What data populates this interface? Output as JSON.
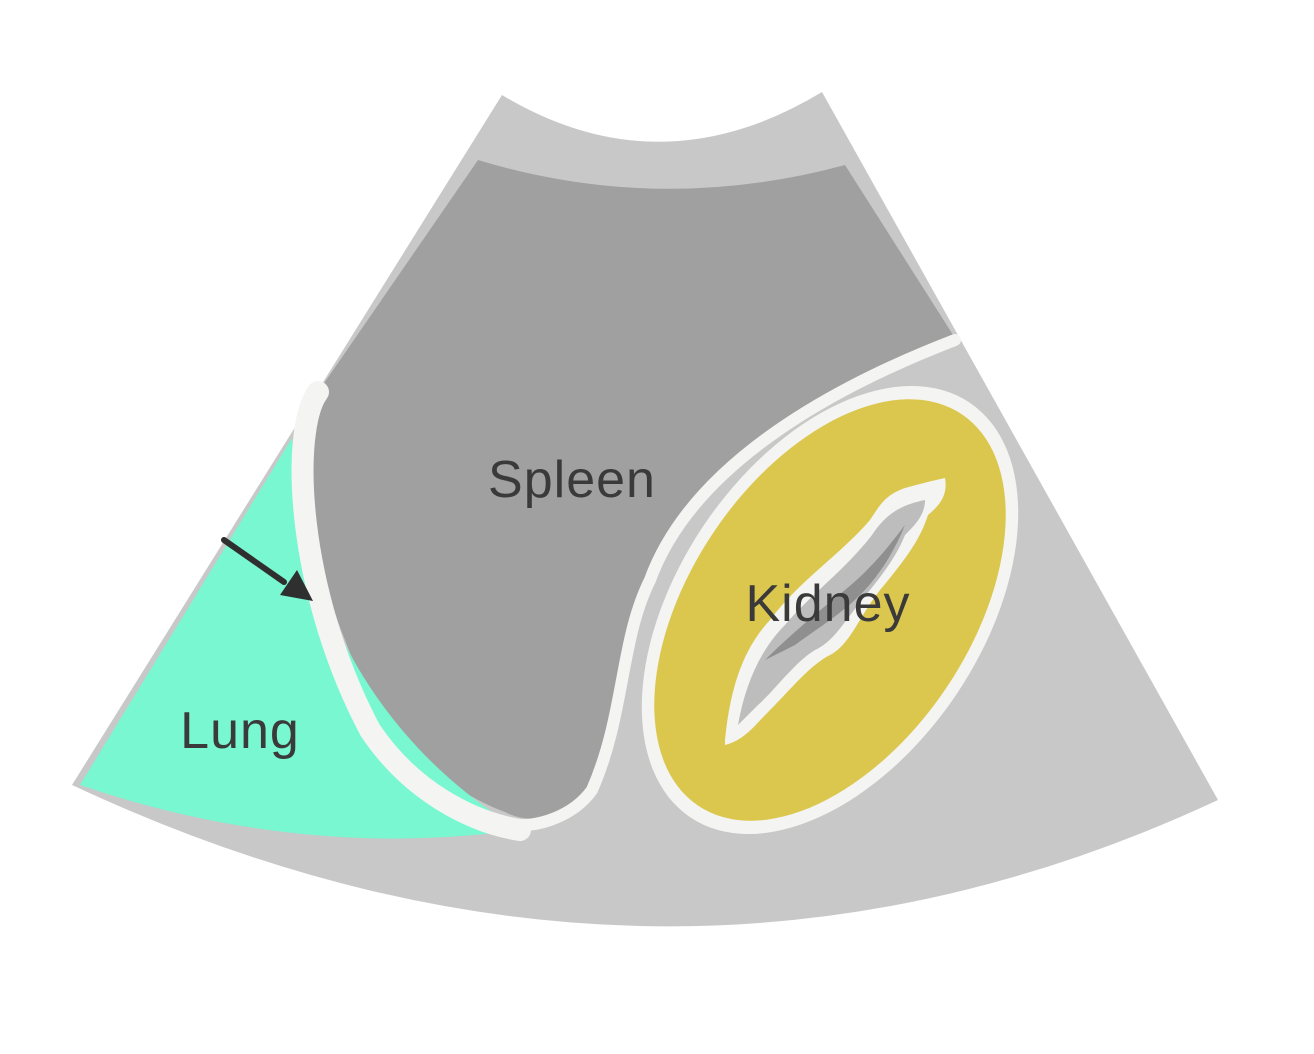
{
  "labels": {
    "spleen": "Spleen",
    "kidney": "Kidney",
    "lung": "Lung"
  },
  "colors": {
    "sector_background": "#c8c8c8",
    "spleen": "#a0a0a0",
    "lung": "#78f7d1",
    "kidney_cortex": "#dcc74e",
    "kidney_sinus": "#bdbdbd",
    "outline": "#f4f4f2",
    "arrow": "#2f2f2f",
    "label_text": "#3a3a3a"
  }
}
